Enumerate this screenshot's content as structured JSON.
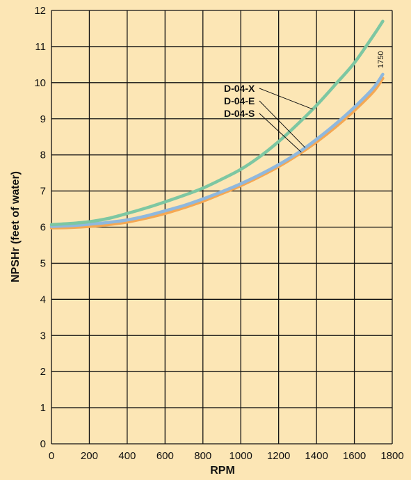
{
  "colors": {
    "background": "#fce6b5",
    "grid": "#111111",
    "D-04-X": "#7dc7a2",
    "D-04-E": "#8fb8de",
    "D-04-S": "#f5a853"
  },
  "chart_data": {
    "type": "line",
    "title": "",
    "xlabel": "RPM",
    "ylabel": "NPSHr (feet of water)",
    "xlim": [
      0,
      1800
    ],
    "ylim": [
      0,
      12
    ],
    "xticks": [
      0,
      200,
      400,
      600,
      800,
      1000,
      1200,
      1400,
      1600,
      1800
    ],
    "yticks": [
      0,
      1,
      2,
      3,
      4,
      5,
      6,
      7,
      8,
      9,
      10,
      11,
      12
    ],
    "grid": true,
    "annotations": [
      {
        "text": "1750",
        "x": 1750,
        "y": 10.4
      }
    ],
    "series": [
      {
        "name": "D-04-X",
        "color": "#7dc7a2",
        "x": [
          0,
          100,
          200,
          300,
          400,
          500,
          600,
          700,
          800,
          900,
          1000,
          1100,
          1200,
          1300,
          1400,
          1500,
          1600,
          1700,
          1750
        ],
        "y": [
          6.07,
          6.1,
          6.15,
          6.24,
          6.38,
          6.53,
          6.7,
          6.88,
          7.08,
          7.33,
          7.6,
          7.95,
          8.37,
          8.85,
          9.37,
          9.95,
          10.55,
          11.3,
          11.7
        ]
      },
      {
        "name": "D-04-E",
        "color": "#8fb8de",
        "x": [
          0,
          100,
          200,
          300,
          400,
          500,
          600,
          700,
          800,
          900,
          1000,
          1100,
          1200,
          1300,
          1400,
          1500,
          1600,
          1700,
          1750
        ],
        "y": [
          6.02,
          6.04,
          6.08,
          6.13,
          6.2,
          6.31,
          6.45,
          6.6,
          6.78,
          6.98,
          7.2,
          7.45,
          7.73,
          8.05,
          8.43,
          8.85,
          9.32,
          9.85,
          10.23
        ]
      },
      {
        "name": "D-04-S",
        "color": "#f5a853",
        "x": [
          0,
          100,
          200,
          300,
          400,
          500,
          600,
          700,
          800,
          900,
          1000,
          1100,
          1200,
          1300,
          1400,
          1500,
          1600,
          1700,
          1750
        ],
        "y": [
          5.98,
          5.99,
          6.02,
          6.07,
          6.14,
          6.25,
          6.38,
          6.54,
          6.72,
          6.93,
          7.15,
          7.4,
          7.68,
          8.0,
          8.36,
          8.77,
          9.23,
          9.75,
          10.12
        ]
      }
    ],
    "labels": [
      "D-04-X",
      "D-04-E",
      "D-04-S"
    ]
  }
}
